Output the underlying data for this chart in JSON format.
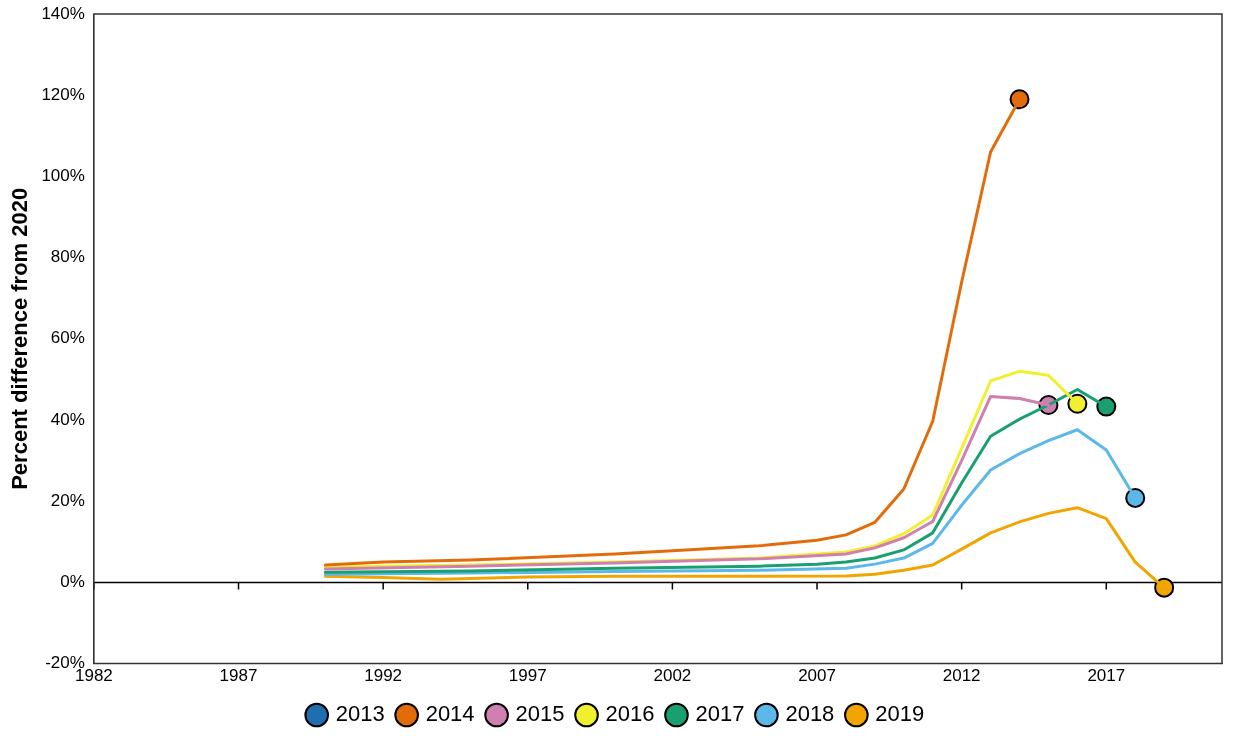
{
  "chart_data": {
    "type": "line",
    "ylabel": "Percent difference from 2020",
    "xlim": [
      1982,
      2021
    ],
    "xticks": [
      1982,
      1987,
      1992,
      1997,
      2002,
      2007,
      2012,
      2017
    ],
    "ylim": [
      -20,
      140
    ],
    "yticks": [
      {
        "value": -20,
        "label": "-20%"
      },
      {
        "value": 0,
        "label": "0%"
      },
      {
        "value": 20,
        "label": "20%"
      },
      {
        "value": 40,
        "label": "40%"
      },
      {
        "value": 60,
        "label": "60%"
      },
      {
        "value": 80,
        "label": "80%"
      },
      {
        "value": 100,
        "label": "100%"
      },
      {
        "value": 120,
        "label": "120%"
      },
      {
        "value": 140,
        "label": "140%"
      }
    ],
    "grid": false,
    "legend": "bottom",
    "line_style": "solid",
    "ref_lines": [
      {
        "axis": "y",
        "value": 0,
        "color": "#000000"
      }
    ],
    "series": [
      {
        "name": "2013",
        "color": "#1f6fb0"
      },
      {
        "name": "2014",
        "color": "#e36c0a",
        "x": [
          1990,
          1992,
          1995,
          2000,
          2002,
          2005,
          2007,
          2008,
          2009,
          2010,
          2011,
          2012,
          2013,
          2014
        ],
        "values": [
          4.3,
          5,
          5.5,
          7,
          7.8,
          9,
          10.4,
          11.7,
          14.8,
          23,
          39.7,
          74,
          106,
          119
        ]
      },
      {
        "name": "2015",
        "color": "#d080b0",
        "x": [
          1990,
          1995,
          2000,
          2005,
          2008,
          2009,
          2010,
          2011,
          2012,
          2013,
          2014,
          2015
        ],
        "values": [
          3.3,
          4,
          4.8,
          5.8,
          7,
          8.5,
          11,
          15,
          30,
          45.8,
          45.3,
          43.7
        ]
      },
      {
        "name": "2016",
        "color": "#f0f030",
        "x": [
          1990,
          1995,
          2000,
          2005,
          2008,
          2009,
          2010,
          2011,
          2012,
          2013,
          2014,
          2015,
          2016
        ],
        "values": [
          3.8,
          4.3,
          5,
          6,
          7.5,
          9,
          12,
          16.6,
          33,
          49.6,
          52,
          51,
          44
        ]
      },
      {
        "name": "2017",
        "color": "#1aa070",
        "x": [
          1990,
          1995,
          2000,
          2005,
          2007,
          2008,
          2009,
          2010,
          2011,
          2012,
          2013,
          2014,
          2015,
          2016,
          2017
        ],
        "values": [
          2.5,
          2.8,
          3.5,
          4,
          4.5,
          5,
          6,
          8,
          12.2,
          24.5,
          36,
          40.2,
          43.7,
          47.5,
          43.3
        ]
      },
      {
        "name": "2018",
        "color": "#5bb8e8",
        "x": [
          1990,
          1995,
          2000,
          2005,
          2008,
          2009,
          2010,
          2011,
          2012,
          2013,
          2014,
          2015,
          2016,
          2017,
          2018
        ],
        "values": [
          2,
          2.3,
          2.7,
          3,
          3.5,
          4.5,
          6,
          9.6,
          19,
          27.7,
          31.7,
          34.9,
          37.6,
          32.6,
          20.8
        ]
      },
      {
        "name": "2019",
        "color": "#f0a500",
        "x": [
          1990,
          1992,
          1994,
          1997,
          2000,
          2005,
          2008,
          2009,
          2010,
          2011,
          2012,
          2013,
          2014,
          2015,
          2016,
          2017,
          2018,
          2019
        ],
        "values": [
          1.5,
          1.2,
          0.8,
          1.3,
          1.5,
          1.5,
          1.6,
          2,
          3,
          4.3,
          8.2,
          12.2,
          14.9,
          17,
          18.4,
          15.7,
          5,
          -1.3
        ]
      },
      {
        "type": "scatter",
        "marker": "circle",
        "x": [
          2014,
          2015,
          2016,
          2017,
          2018,
          2019
        ],
        "values": [
          119,
          43.7,
          44,
          43.3,
          20.8,
          -1.3
        ],
        "colors": [
          "#e36c0a",
          "#d080b0",
          "#f0f030",
          "#1aa070",
          "#5bb8e8",
          "#f0a500"
        ]
      }
    ]
  }
}
